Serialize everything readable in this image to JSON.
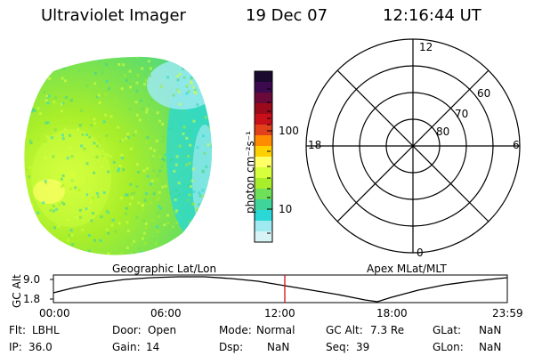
{
  "header": {
    "title": "Ultraviolet Imager",
    "date": "19 Dec 07",
    "time": "12:16:44 UT"
  },
  "colorbar": {
    "label": "photon cm⁻²s⁻¹",
    "ticks": [
      "100",
      "10"
    ],
    "colors": [
      "#1a0a2e",
      "#3b0a4f",
      "#6a0a3a",
      "#9a0a1a",
      "#c8101a",
      "#e0401a",
      "#ff8c00",
      "#ffd000",
      "#ffff66",
      "#d8ff3c",
      "#a8ee2a",
      "#6ee05a",
      "#3ed49a",
      "#2ad8d8",
      "#9eeaf0",
      "#d8f3f5"
    ]
  },
  "polar_plot": {
    "mlt_labels": [
      "12",
      "18",
      "6",
      "0"
    ],
    "lat_labels": [
      "60",
      "70",
      "80"
    ]
  },
  "timeline": {
    "left_label": "Geographic Lat/Lon",
    "right_label": "Apex MLat/MLT",
    "axis_title": "GC Alt",
    "y_ticks": [
      "9.0",
      "1.8"
    ],
    "x_ticks": [
      "00:00",
      "06:00",
      "12:00",
      "18:00",
      "23:59"
    ],
    "marker_time": "12:16:44"
  },
  "status": {
    "row1": [
      {
        "key": "Flt:",
        "value": "LBHL"
      },
      {
        "key": "Door:",
        "value": "Open"
      },
      {
        "key": "Mode:",
        "value": "Normal"
      },
      {
        "key": "GC Alt:",
        "value": "7.3 Re"
      },
      {
        "key": "GLat:",
        "value": "NaN"
      }
    ],
    "row2": [
      {
        "key": "IP:",
        "value": "36.0"
      },
      {
        "key": "Gain:",
        "value": "14"
      },
      {
        "key": "Dsp:",
        "value": "NaN"
      },
      {
        "key": "Seq:",
        "value": "39"
      },
      {
        "key": "GLon:",
        "value": "NaN"
      }
    ]
  }
}
